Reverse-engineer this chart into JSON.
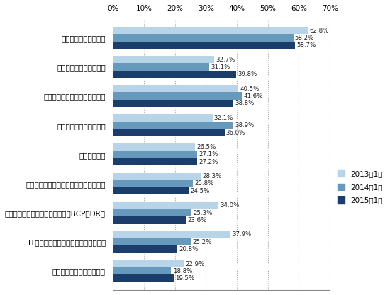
{
  "categories": [
    "業務プロセスの効率化",
    "情報セキュリティの強化",
    "社内コミュニケーションの強化",
    "社内体制・組織の再構築",
    "営業力の強化",
    "経営意思決定の迅速化（スピード経営）",
    "災害やシステムダウンへの対応（BCP／DR）",
    "IT機器・システムの更新時期への対応",
    "商品・サービスの品質向上"
  ],
  "series": {
    "2013年1月": [
      62.8,
      32.7,
      40.5,
      32.1,
      26.5,
      28.3,
      34.0,
      37.9,
      22.9
    ],
    "2014年1月": [
      58.2,
      31.1,
      41.6,
      38.9,
      27.1,
      25.8,
      25.3,
      25.2,
      18.8
    ],
    "2015年1月": [
      58.7,
      39.8,
      38.8,
      36.0,
      27.2,
      24.5,
      23.6,
      20.8,
      19.5
    ]
  },
  "colors": {
    "2013年1月": "#b8d4e8",
    "2014年1月": "#6699bb",
    "2015年1月": "#1a3d6b"
  },
  "legend_order": [
    "2013年1月",
    "2014年1月",
    "2015年1月"
  ],
  "xlim": [
    0,
    70
  ],
  "xticks": [
    0,
    10,
    20,
    30,
    40,
    50,
    60,
    70
  ],
  "xticklabels": [
    "0%",
    "10%",
    "20%",
    "30%",
    "40%",
    "50%",
    "60%",
    "70%"
  ],
  "bar_height": 0.25,
  "label_fontsize": 7.5,
  "value_fontsize": 6.2,
  "tick_fontsize": 7.5,
  "legend_fontsize": 7.5,
  "background_color": "#ffffff"
}
